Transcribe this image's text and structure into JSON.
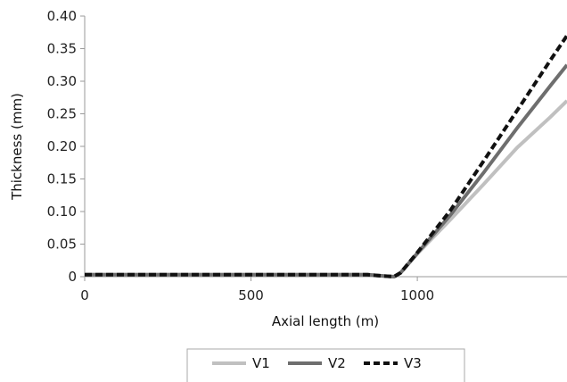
{
  "chart_data": {
    "type": "line",
    "xlabel": "Axial length (m)",
    "ylabel": "Thickness (mm)",
    "xlim": [
      0,
      1450
    ],
    "ylim": [
      0,
      0.4
    ],
    "x_ticks": [
      0,
      500,
      1000
    ],
    "x_tick_labels": [
      "0",
      "500",
      "1000"
    ],
    "y_ticks": [
      0,
      0.05,
      0.1,
      0.15,
      0.2,
      0.25,
      0.3,
      0.35,
      0.4
    ],
    "y_tick_labels": [
      "0",
      "0.05",
      "0.10",
      "0.15",
      "0.20",
      "0.25",
      "0.30",
      "0.35",
      "0.40"
    ],
    "grid": false,
    "legend_position": "bottom",
    "series": [
      {
        "name": "V1",
        "color": "#c0c0c0",
        "style": "solid",
        "points": [
          [
            0,
            0.003
          ],
          [
            850,
            0.003
          ],
          [
            900,
            0.001
          ],
          [
            930,
            0.0
          ],
          [
            950,
            0.006
          ],
          [
            1000,
            0.035
          ],
          [
            1100,
            0.088
          ],
          [
            1200,
            0.142
          ],
          [
            1300,
            0.198
          ],
          [
            1400,
            0.245
          ],
          [
            1450,
            0.27
          ]
        ]
      },
      {
        "name": "V2",
        "color": "#6e6e6e",
        "style": "solid",
        "points": [
          [
            0,
            0.003
          ],
          [
            850,
            0.003
          ],
          [
            900,
            0.001
          ],
          [
            930,
            0.0
          ],
          [
            950,
            0.006
          ],
          [
            1000,
            0.036
          ],
          [
            1100,
            0.095
          ],
          [
            1200,
            0.16
          ],
          [
            1300,
            0.228
          ],
          [
            1400,
            0.293
          ],
          [
            1450,
            0.325
          ]
        ]
      },
      {
        "name": "V3",
        "color": "#111111",
        "style": "dashed",
        "points": [
          [
            0,
            0.003
          ],
          [
            850,
            0.003
          ],
          [
            900,
            0.001
          ],
          [
            930,
            0.0
          ],
          [
            950,
            0.006
          ],
          [
            1000,
            0.037
          ],
          [
            1100,
            0.102
          ],
          [
            1200,
            0.178
          ],
          [
            1300,
            0.255
          ],
          [
            1400,
            0.332
          ],
          [
            1450,
            0.37
          ]
        ]
      }
    ]
  }
}
